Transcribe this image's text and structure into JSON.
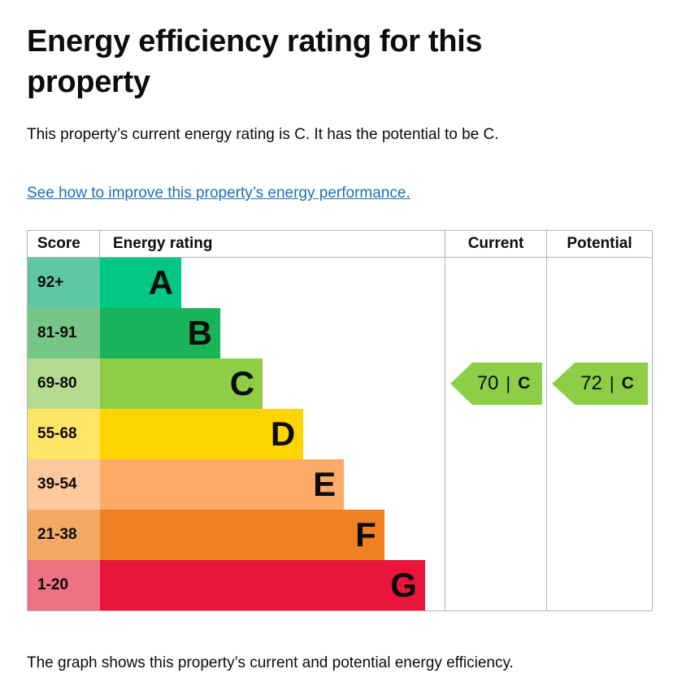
{
  "page": {
    "title": "Energy efficiency rating for this property",
    "intro": "This property’s current energy rating is C. It has the potential to be C.",
    "improve_link": "See how to improve this property’s energy performance.",
    "footer_note": "The graph shows this property’s current and potential energy efficiency.",
    "text_color": "#0b0c0c",
    "link_color": "#1d70b8",
    "border_color": "#b1b4b6"
  },
  "chart_data": {
    "type": "bar",
    "title": "Energy efficiency rating for this property",
    "columns": [
      "Score",
      "Energy rating",
      "Current",
      "Potential"
    ],
    "bands": [
      {
        "letter": "A",
        "score_range": "92+",
        "bar_color": "#00c781",
        "score_bg": "#5fc7a1",
        "width_pct": 23.6
      },
      {
        "letter": "B",
        "score_range": "81-91",
        "bar_color": "#19b459",
        "score_bg": "#76c688",
        "width_pct": 34.9
      },
      {
        "letter": "C",
        "score_range": "69-80",
        "bar_color": "#8dce46",
        "score_bg": "#b3dc8e",
        "width_pct": 47.2
      },
      {
        "letter": "D",
        "score_range": "55-68",
        "bar_color": "#ffd500",
        "score_bg": "#ffe566",
        "width_pct": 59.0
      },
      {
        "letter": "E",
        "score_range": "39-54",
        "bar_color": "#fcaa65",
        "score_bg": "#fcc89c",
        "width_pct": 70.8
      },
      {
        "letter": "F",
        "score_range": "21-38",
        "bar_color": "#ef8023",
        "score_bg": "#f2a966",
        "width_pct": 82.5
      },
      {
        "letter": "G",
        "score_range": "1-20",
        "bar_color": "#e9153b",
        "score_bg": "#ef7184",
        "width_pct": 94.3
      }
    ],
    "current": {
      "value": 70,
      "band": "C",
      "color": "#8dce46"
    },
    "potential": {
      "value": 72,
      "band": "C",
      "color": "#8dce46"
    }
  }
}
